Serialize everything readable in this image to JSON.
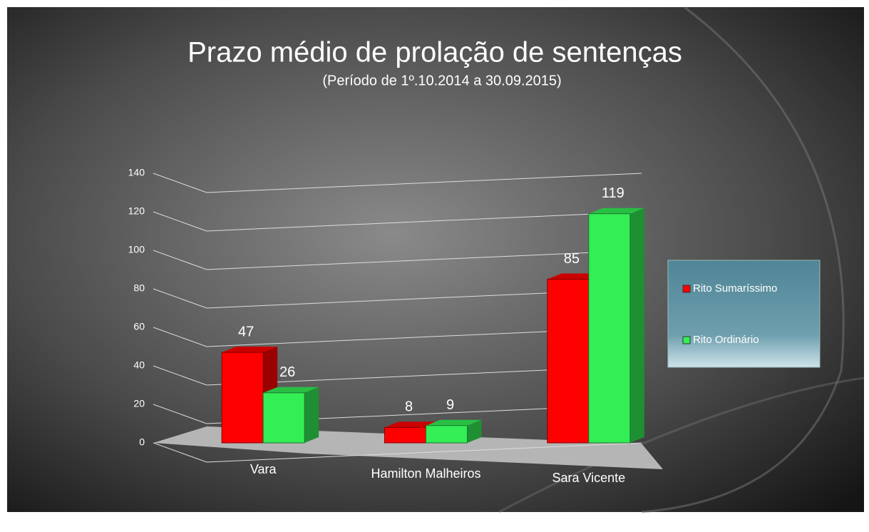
{
  "chart_data": {
    "type": "bar",
    "title": "Prazo médio de prolação de sentenças",
    "subtitle": "(Período de 1º.10.2014  a  30.09.2015)",
    "categories": [
      "Vara",
      "Hamilton Malheiros",
      "Sara Vicente"
    ],
    "series": [
      {
        "name": "Rito Sumaríssimo",
        "color": "#ff0000",
        "values": [
          47,
          8,
          85
        ]
      },
      {
        "name": "Rito Ordinário",
        "color": "#33ee55",
        "values": [
          26,
          9,
          119
        ]
      }
    ],
    "ylim": [
      0,
      140
    ],
    "yticks": [
      0,
      20,
      40,
      60,
      80,
      100,
      120,
      140
    ],
    "grid": true,
    "legend": "right"
  }
}
